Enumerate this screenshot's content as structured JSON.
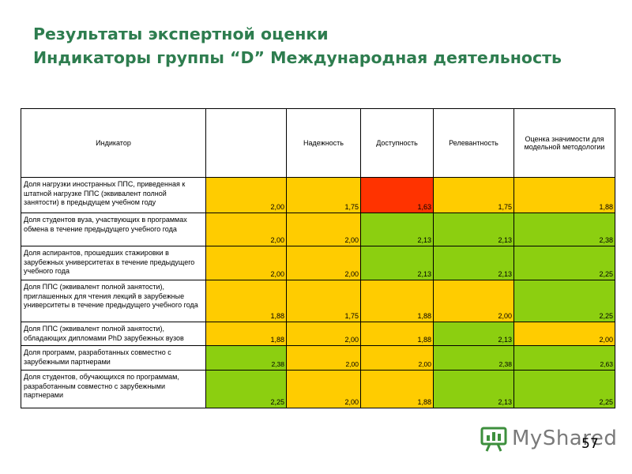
{
  "title": {
    "line1": "Результаты экспертной оценки",
    "line2": "Индикаторы группы “D” Международная деятельность"
  },
  "table": {
    "headers": [
      "Индикатор",
      "",
      "Надежность",
      "Доступность",
      "Релевантность",
      "Оценка значимости  для модельной методологии"
    ],
    "rows": [
      {
        "indicator": "Доля нагрузки иностранных ППС, приведенная к штатной нагрузке ППС (эквивалент полной занятости) в предыдущем учебном году",
        "values": [
          "2,00",
          "1,75",
          "1,63",
          "1,75",
          "1,88"
        ],
        "colors": [
          "y",
          "y",
          "r",
          "y",
          "y"
        ]
      },
      {
        "indicator": "Доля студентов вуза, участвующих в программах обмена в течение предыдущего учебного года",
        "values": [
          "2,00",
          "2,00",
          "2,13",
          "2,13",
          "2,38"
        ],
        "colors": [
          "y",
          "y",
          "g",
          "g",
          "g"
        ]
      },
      {
        "indicator": "Доля аспирантов, прошедших стажировки в зарубежных университетах в течение предыдущего учебного года",
        "values": [
          "2,00",
          "2,00",
          "2,13",
          "2,13",
          "2,25"
        ],
        "colors": [
          "y",
          "y",
          "g",
          "g",
          "g"
        ]
      },
      {
        "indicator": "Доля ППС (эквивалент полной занятости), приглашенных для чтения лекций в зарубежные университеты в течение предыдущего учебного года",
        "values": [
          "1,88",
          "1,75",
          "1,88",
          "2,00",
          "2,25"
        ],
        "colors": [
          "y",
          "y",
          "y",
          "y",
          "g"
        ]
      },
      {
        "indicator": "Доля ППС (эквивалент полной занятости), обладающих дипломами PhD зарубежных вузов",
        "values": [
          "1,88",
          "2,00",
          "1,88",
          "2,13",
          "2,00"
        ],
        "colors": [
          "y",
          "y",
          "y",
          "g",
          "y"
        ]
      },
      {
        "indicator": "Доля программ, разработанных совместно с зарубежными партнерами",
        "values": [
          "2,38",
          "2,00",
          "2,00",
          "2,38",
          "2,63"
        ],
        "colors": [
          "g",
          "y",
          "y",
          "g",
          "g"
        ]
      },
      {
        "indicator": "Доля студентов, обучающихся по программам, разработанным совместно с зарубежными партнерами",
        "values": [
          "2,25",
          "2,00",
          "1,88",
          "2,13",
          "2,25"
        ],
        "colors": [
          "g",
          "y",
          "y",
          "g",
          "g"
        ]
      }
    ]
  },
  "logo": {
    "text": "MyShared",
    "icon": "presentation-board-icon"
  },
  "page_number": "57",
  "colors": {
    "title": "#2e7d4f",
    "yellow": "#ffcc00",
    "green": "#8ccf10",
    "red": "#ff3300"
  }
}
